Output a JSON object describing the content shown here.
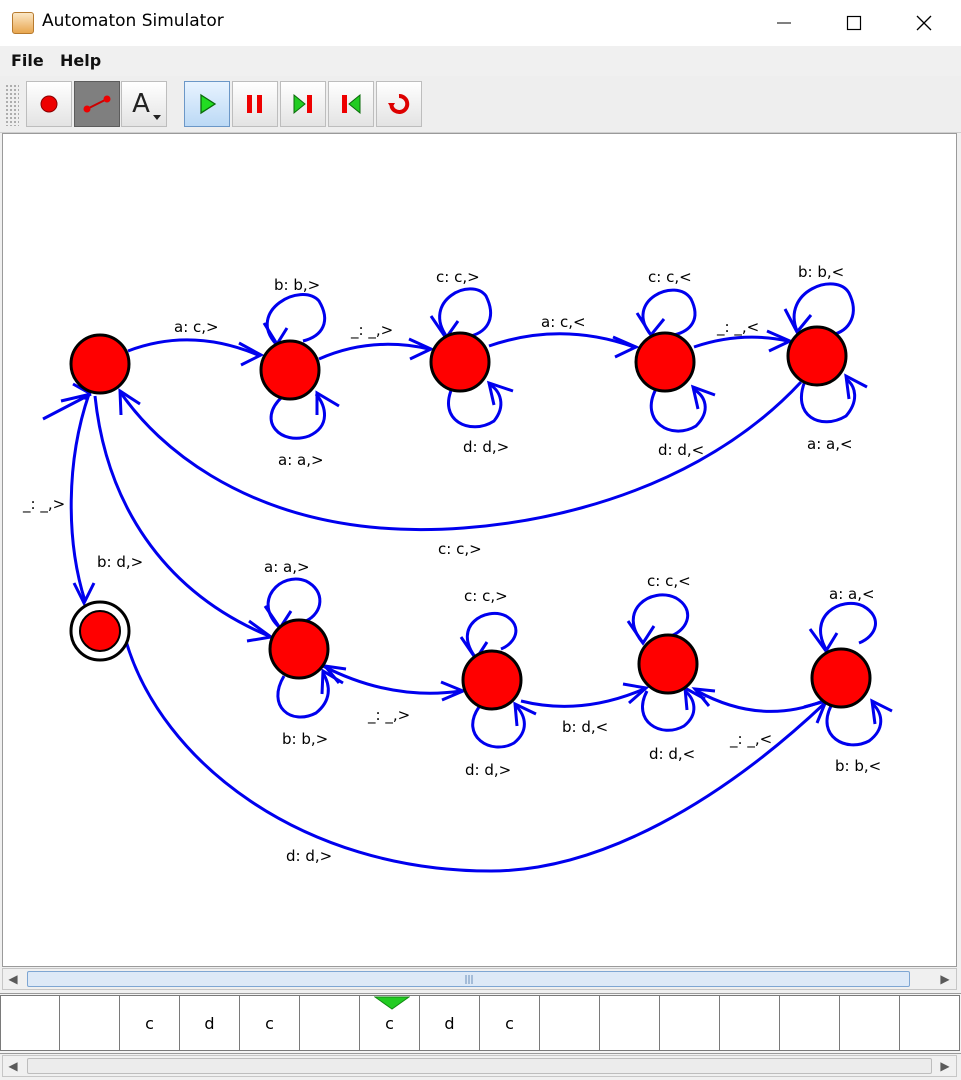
{
  "window": {
    "title": "Automaton Simulator"
  },
  "menu": [
    "File",
    "Help"
  ],
  "toolbar": {
    "tools": [
      {
        "name": "state-tool",
        "icon": "state-icon",
        "pressed": false
      },
      {
        "name": "transition-tool",
        "icon": "transition-icon",
        "pressed": true
      },
      {
        "name": "text-tool",
        "icon": "text-icon",
        "label": "A",
        "pressed": false
      }
    ],
    "controls": [
      {
        "name": "play",
        "icon": "play-icon",
        "active": true
      },
      {
        "name": "pause",
        "icon": "pause-icon",
        "active": false
      },
      {
        "name": "step-forward",
        "icon": "step-forward-icon",
        "active": false
      },
      {
        "name": "step-back",
        "icon": "step-back-icon",
        "active": false
      },
      {
        "name": "reset",
        "icon": "reset-icon",
        "active": false
      }
    ]
  },
  "automaton": {
    "colors": {
      "state": "#ff0000",
      "edge": "#0000ee",
      "outline": "#000000"
    },
    "states": [
      {
        "id": "s0",
        "start": false,
        "accept": false
      },
      {
        "id": "s1",
        "start": false,
        "accept": false
      },
      {
        "id": "s2",
        "start": false,
        "accept": false
      },
      {
        "id": "s3",
        "start": false,
        "accept": false
      },
      {
        "id": "s4",
        "start": false,
        "accept": false
      },
      {
        "id": "accept",
        "start": false,
        "accept": true
      },
      {
        "id": "t1",
        "start": false,
        "accept": false
      },
      {
        "id": "t2",
        "start": false,
        "accept": false
      },
      {
        "id": "t3",
        "start": false,
        "accept": false
      },
      {
        "id": "t4",
        "start": false,
        "accept": false
      }
    ],
    "transitions": [
      {
        "id": "e-s0-s1",
        "label": "a: c,>"
      },
      {
        "id": "e-s1-loop-top",
        "label": "b: b,>"
      },
      {
        "id": "e-s1-loop-bottom",
        "label": "a: a,>"
      },
      {
        "id": "e-s1-s2",
        "label": "_: _,>"
      },
      {
        "id": "e-s2-loop-top",
        "label": "c: c,>"
      },
      {
        "id": "e-s2-loop-bottom",
        "label": "d: d,>"
      },
      {
        "id": "e-s2-s3",
        "label": "a: c,<"
      },
      {
        "id": "e-s3-loop-top",
        "label": "c: c,<"
      },
      {
        "id": "e-s3-loop-bottom",
        "label": "d: d,<"
      },
      {
        "id": "e-s3-s4",
        "label": "_: _,<"
      },
      {
        "id": "e-s4-loop-top",
        "label": "b: b,<"
      },
      {
        "id": "e-s4-loop-bottom",
        "label": "a: a,<"
      },
      {
        "id": "e-s4-s0",
        "label": "c: c,>"
      },
      {
        "id": "e-s0-accept",
        "label": "_: _,>"
      },
      {
        "id": "e-s0-t1",
        "label": "b: d,>"
      },
      {
        "id": "e-t1-loop-top",
        "label": "a: a,>"
      },
      {
        "id": "e-t1-loop-bottom",
        "label": "b: b,>"
      },
      {
        "id": "e-t1-t2",
        "label": "_: _,>"
      },
      {
        "id": "e-t2-loop-top",
        "label": "c: c,>"
      },
      {
        "id": "e-t2-loop-bottom",
        "label": "d: d,>"
      },
      {
        "id": "e-t2-t3",
        "label": "b: d,<"
      },
      {
        "id": "e-t3-loop-top",
        "label": "c: c,<"
      },
      {
        "id": "e-t3-loop-bottom",
        "label": "d: d,<"
      },
      {
        "id": "e-t3-t4",
        "label": "_: _,<"
      },
      {
        "id": "e-t4-loop-top",
        "label": "a: a,<"
      },
      {
        "id": "e-t4-loop-bottom",
        "label": "b: b,<"
      },
      {
        "id": "e-t4-s0",
        "label": "d: d,>"
      }
    ]
  },
  "tape": {
    "cells": [
      "",
      "",
      "c",
      "d",
      "c",
      "",
      "c",
      "d",
      "c",
      "",
      "",
      "",
      "",
      "",
      "",
      ""
    ],
    "head_index": 6,
    "head_color": "#22cc22"
  }
}
